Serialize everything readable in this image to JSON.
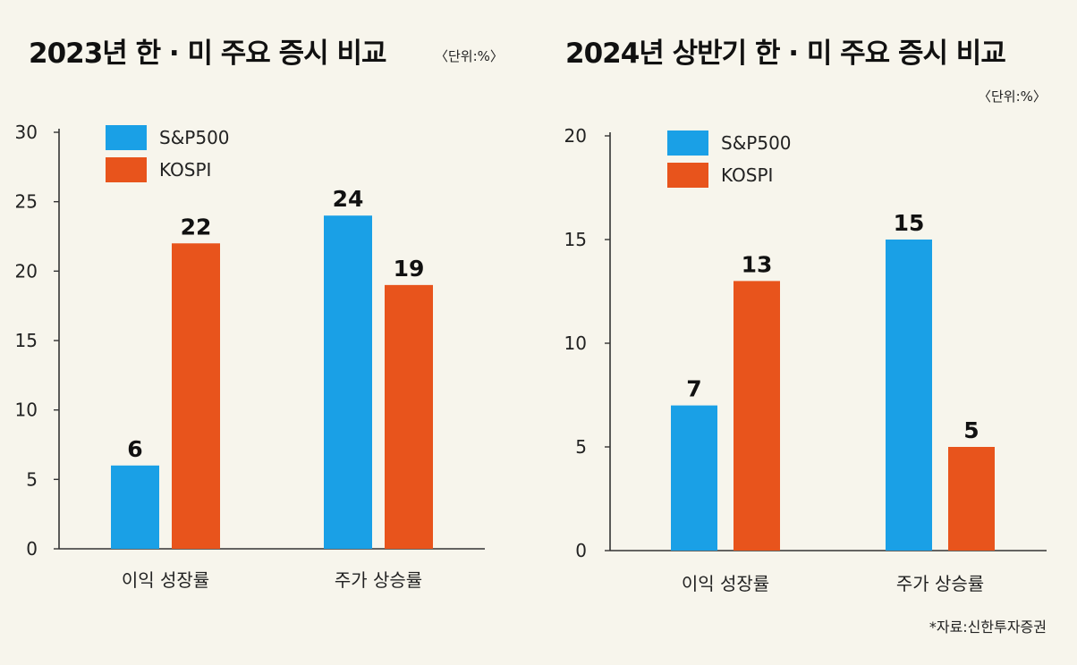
{
  "page": {
    "source": "*자료:신한투자증권"
  },
  "chart_data": [
    {
      "type": "bar",
      "title": "2023년 한 · 미 주요 증시 비교",
      "unit_label": "〈단위:%〉",
      "categories": [
        "이익 성장률",
        "주가 상승률"
      ],
      "series": [
        {
          "name": "S&P500",
          "values": [
            6,
            24
          ],
          "display": [
            "6",
            "24"
          ],
          "color": "#1aa0e6"
        },
        {
          "name": "KOSPI",
          "values": [
            22,
            19
          ],
          "display": [
            "22",
            "19"
          ],
          "color": "#e8541c"
        }
      ],
      "ylim": [
        0,
        30
      ],
      "yticks": [
        "0",
        "5",
        "10",
        "15",
        "20",
        "25",
        "30"
      ],
      "legend": "top-left",
      "grid": false
    },
    {
      "type": "bar",
      "title": "2024년 상반기 한 · 미 주요 증시 비교",
      "unit_label": "〈단위:%〉",
      "categories": [
        "이익 성장률",
        "주가 상승률"
      ],
      "series": [
        {
          "name": "S&P500",
          "values": [
            7,
            15
          ],
          "display": [
            "7",
            "15"
          ],
          "color": "#1aa0e6"
        },
        {
          "name": "KOSPI",
          "values": [
            13,
            5
          ],
          "display": [
            "13",
            "5"
          ],
          "color": "#e8541c"
        }
      ],
      "ylim": [
        0,
        20
      ],
      "yticks": [
        "0",
        "5",
        "10",
        "15",
        "20"
      ],
      "legend": "top-left",
      "grid": false
    }
  ]
}
